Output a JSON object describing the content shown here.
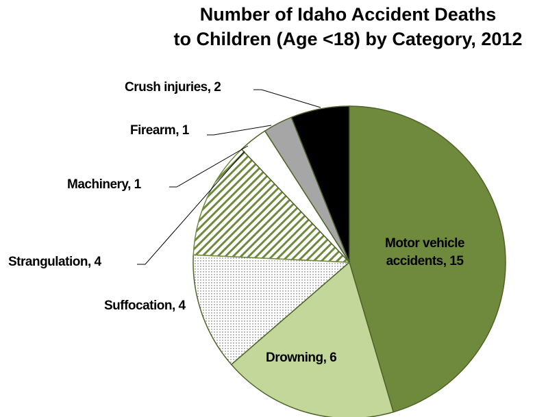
{
  "chart_data": {
    "type": "pie",
    "title": [
      "Number of Idaho Accident Deaths",
      "to Children (Age <18) by Category, 2012"
    ],
    "values": [
      15,
      6,
      4,
      4,
      1,
      1,
      2
    ],
    "value_labels": [
      "Motor vehicle accidents, 15",
      "Drowning, 6",
      "Suffocation, 4",
      "Strangulation, 4",
      "Machinery, 1",
      "Firearm, 1",
      "Crush injuries, 2"
    ],
    "fills": [
      "#6f8a3c",
      "#c4d79b",
      "dots",
      "stripes",
      "#ffffff",
      "#a6a6a6",
      "#000000"
    ]
  }
}
